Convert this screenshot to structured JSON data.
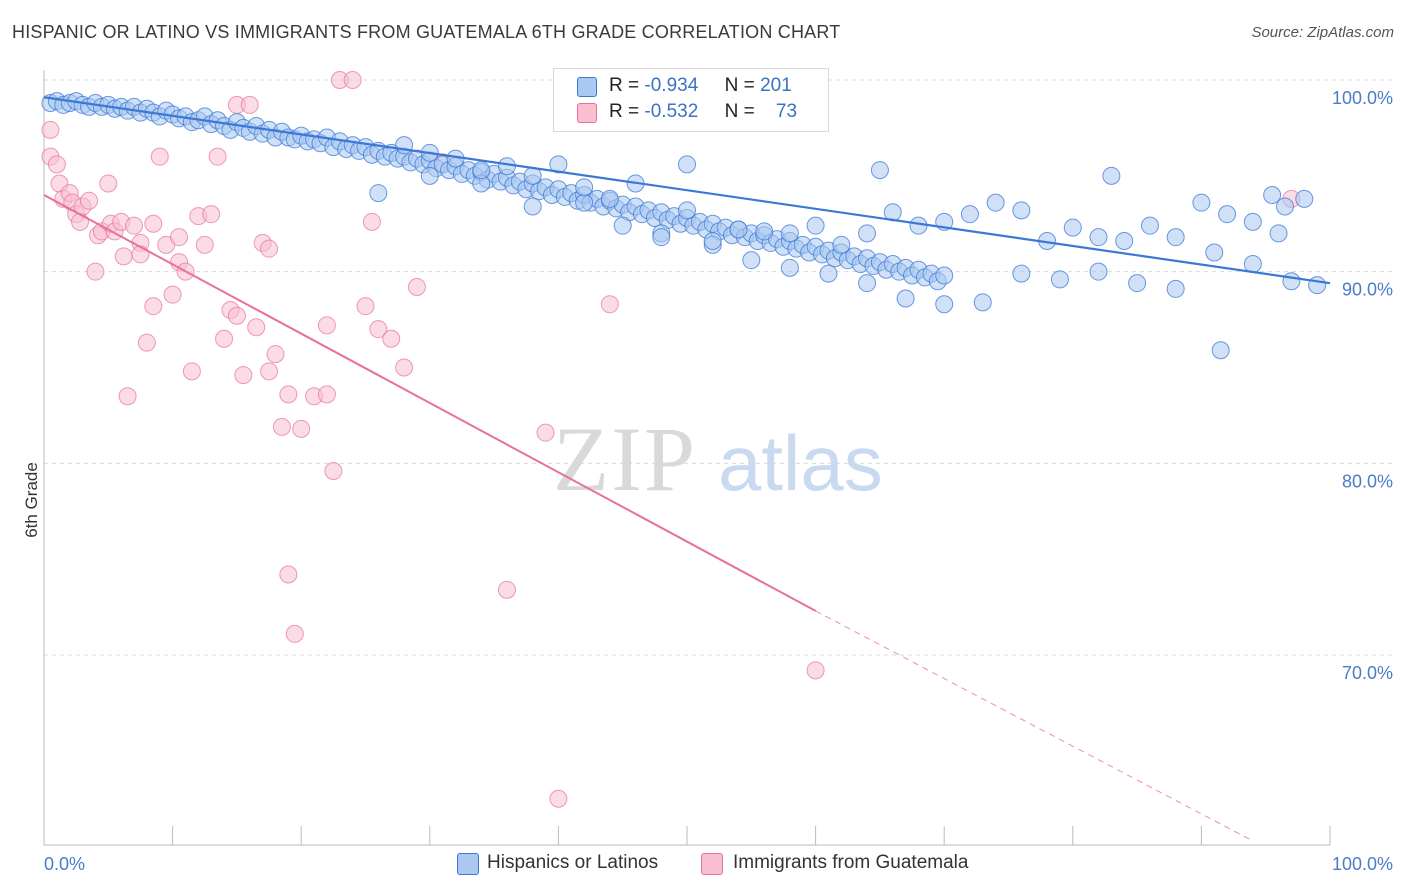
{
  "title": "HISPANIC OR LATINO VS IMMIGRANTS FROM GUATEMALA 6TH GRADE CORRELATION CHART",
  "source": "Source: ZipAtlas.com",
  "watermark": {
    "zip": "ZIP",
    "atlas": "atlas"
  },
  "colors": {
    "blue": "#3b78d6",
    "blue_fill": "#aac8f0",
    "pink": "#e8719a",
    "pink_fill": "#f7bfd0",
    "tick_text": "#4a7cc7"
  },
  "stats": [
    {
      "series": "Hispanics or Latinos",
      "r_label": "R =",
      "r_value": "-0.934",
      "n_label": "N =",
      "n_value": "201"
    },
    {
      "series": "Immigrants from Guatemala",
      "r_label": "R =",
      "r_value": "-0.532",
      "n_label": "N =",
      "n_value": "73"
    }
  ],
  "legend": [
    {
      "label": "Hispanics or Latinos"
    },
    {
      "label": "Immigrants from Guatemala"
    }
  ],
  "chart_data": {
    "type": "scatter",
    "title": "HISPANIC OR LATINO VS IMMIGRANTS FROM GUATEMALA 6TH GRADE CORRELATION CHART",
    "xlabel": "",
    "ylabel": "6th Grade",
    "xlim": [
      0,
      100
    ],
    "ylim": [
      60,
      102
    ],
    "x_tick_labels": [
      "0.0%",
      "100.0%"
    ],
    "y_ticks": [
      100,
      90,
      80,
      70
    ],
    "y_tick_labels": [
      "100.0%",
      "90.0%",
      "80.0%",
      "70.0%"
    ],
    "grid": true,
    "legend_position": "bottom",
    "series": [
      {
        "name": "Hispanics or Latinos",
        "color": "#3b78d6",
        "trend": {
          "x": [
            0,
            100
          ],
          "y": [
            99.1,
            89.4
          ]
        },
        "points": [
          [
            0.5,
            98.8
          ],
          [
            1,
            98.9
          ],
          [
            1.5,
            98.7
          ],
          [
            2,
            98.8
          ],
          [
            2.5,
            98.9
          ],
          [
            3,
            98.7
          ],
          [
            3.5,
            98.6
          ],
          [
            4,
            98.8
          ],
          [
            4.5,
            98.6
          ],
          [
            5,
            98.7
          ],
          [
            5.5,
            98.5
          ],
          [
            6,
            98.6
          ],
          [
            6.5,
            98.4
          ],
          [
            7,
            98.6
          ],
          [
            7.5,
            98.3
          ],
          [
            8,
            98.5
          ],
          [
            8.5,
            98.3
          ],
          [
            9,
            98.1
          ],
          [
            9.5,
            98.4
          ],
          [
            10,
            98.2
          ],
          [
            10.5,
            98.0
          ],
          [
            11,
            98.1
          ],
          [
            11.5,
            97.8
          ],
          [
            12,
            97.9
          ],
          [
            12.5,
            98.1
          ],
          [
            13,
            97.7
          ],
          [
            13.5,
            97.9
          ],
          [
            14,
            97.6
          ],
          [
            14.5,
            97.4
          ],
          [
            15,
            97.8
          ],
          [
            15.5,
            97.5
          ],
          [
            16,
            97.3
          ],
          [
            16.5,
            97.6
          ],
          [
            17,
            97.2
          ],
          [
            17.5,
            97.4
          ],
          [
            18,
            97.0
          ],
          [
            18.5,
            97.3
          ],
          [
            19,
            97.0
          ],
          [
            19.5,
            96.9
          ],
          [
            20,
            97.1
          ],
          [
            20.5,
            96.8
          ],
          [
            21,
            96.9
          ],
          [
            21.5,
            96.7
          ],
          [
            22,
            97.0
          ],
          [
            22.5,
            96.5
          ],
          [
            23,
            96.8
          ],
          [
            23.5,
            96.4
          ],
          [
            24,
            96.6
          ],
          [
            24.5,
            96.3
          ],
          [
            25,
            96.5
          ],
          [
            25.5,
            96.1
          ],
          [
            26,
            96.3
          ],
          [
            26.5,
            96.0
          ],
          [
            27,
            96.2
          ],
          [
            27.5,
            95.9
          ],
          [
            28,
            96.0
          ],
          [
            28.5,
            95.7
          ],
          [
            29,
            95.9
          ],
          [
            29.5,
            95.6
          ],
          [
            30,
            95.8
          ],
          [
            30.5,
            95.4
          ],
          [
            31,
            95.6
          ],
          [
            31.5,
            95.3
          ],
          [
            32,
            95.5
          ],
          [
            32.5,
            95.1
          ],
          [
            33,
            95.3
          ],
          [
            33.5,
            95.0
          ],
          [
            34,
            95.2
          ],
          [
            34.5,
            94.8
          ],
          [
            35,
            95.1
          ],
          [
            35.5,
            94.7
          ],
          [
            36,
            94.9
          ],
          [
            36.5,
            94.5
          ],
          [
            37,
            94.7
          ],
          [
            37.5,
            94.3
          ],
          [
            38,
            94.6
          ],
          [
            38.5,
            94.2
          ],
          [
            39,
            94.4
          ],
          [
            39.5,
            94.0
          ],
          [
            40,
            94.3
          ],
          [
            40.5,
            93.9
          ],
          [
            41,
            94.1
          ],
          [
            41.5,
            93.7
          ],
          [
            42,
            94.0
          ],
          [
            42.5,
            93.6
          ],
          [
            43,
            93.8
          ],
          [
            43.5,
            93.4
          ],
          [
            44,
            93.7
          ],
          [
            44.5,
            93.3
          ],
          [
            45,
            93.5
          ],
          [
            45.5,
            93.1
          ],
          [
            46,
            93.4
          ],
          [
            46.5,
            93.0
          ],
          [
            47,
            93.2
          ],
          [
            47.5,
            92.8
          ],
          [
            48,
            93.1
          ],
          [
            48.5,
            92.7
          ],
          [
            49,
            92.9
          ],
          [
            49.5,
            92.5
          ],
          [
            50,
            92.8
          ],
          [
            50.5,
            92.4
          ],
          [
            51,
            92.6
          ],
          [
            51.5,
            92.2
          ],
          [
            52,
            92.5
          ],
          [
            52.5,
            92.1
          ],
          [
            53,
            92.3
          ],
          [
            53.5,
            91.9
          ],
          [
            54,
            92.2
          ],
          [
            54.5,
            91.8
          ],
          [
            55,
            92.0
          ],
          [
            55.5,
            91.6
          ],
          [
            56,
            91.9
          ],
          [
            56.5,
            91.5
          ],
          [
            57,
            91.7
          ],
          [
            57.5,
            91.3
          ],
          [
            58,
            91.6
          ],
          [
            58.5,
            91.2
          ],
          [
            59,
            91.4
          ],
          [
            59.5,
            91.0
          ],
          [
            60,
            91.3
          ],
          [
            60.5,
            90.9
          ],
          [
            61,
            91.1
          ],
          [
            61.5,
            90.7
          ],
          [
            62,
            91.0
          ],
          [
            62.5,
            90.6
          ],
          [
            63,
            90.8
          ],
          [
            63.5,
            90.4
          ],
          [
            64,
            90.7
          ],
          [
            64.5,
            90.3
          ],
          [
            65,
            90.5
          ],
          [
            65.5,
            90.1
          ],
          [
            66,
            90.4
          ],
          [
            66.5,
            90.0
          ],
          [
            67,
            90.2
          ],
          [
            67.5,
            89.8
          ],
          [
            68,
            90.1
          ],
          [
            68.5,
            89.7
          ],
          [
            69,
            89.9
          ],
          [
            69.5,
            89.5
          ],
          [
            70,
            89.8
          ],
          [
            26,
            94.1
          ],
          [
            30,
            95.0
          ],
          [
            34,
            94.6
          ],
          [
            38,
            93.4
          ],
          [
            42,
            93.6
          ],
          [
            45,
            92.4
          ],
          [
            48,
            92.0
          ],
          [
            52,
            91.4
          ],
          [
            55,
            90.6
          ],
          [
            58,
            90.2
          ],
          [
            61,
            89.9
          ],
          [
            64,
            89.4
          ],
          [
            67,
            88.6
          ],
          [
            70,
            88.3
          ],
          [
            73,
            88.4
          ],
          [
            76,
            89.9
          ],
          [
            79,
            89.6
          ],
          [
            82,
            90.0
          ],
          [
            85,
            89.4
          ],
          [
            88,
            89.1
          ],
          [
            91,
            91.0
          ],
          [
            94,
            90.4
          ],
          [
            97,
            89.5
          ],
          [
            99,
            89.3
          ],
          [
            96,
            92.0
          ],
          [
            94,
            92.6
          ],
          [
            92,
            93.0
          ],
          [
            90,
            93.6
          ],
          [
            98,
            93.8
          ],
          [
            88,
            91.8
          ],
          [
            86,
            92.4
          ],
          [
            84,
            91.6
          ],
          [
            82,
            91.8
          ],
          [
            80,
            92.3
          ],
          [
            78,
            91.6
          ],
          [
            76,
            93.2
          ],
          [
            74,
            93.6
          ],
          [
            72,
            93.0
          ],
          [
            70,
            92.6
          ],
          [
            68,
            92.4
          ],
          [
            66,
            93.1
          ],
          [
            64,
            92.0
          ],
          [
            62,
            91.4
          ],
          [
            60,
            92.4
          ],
          [
            58,
            92.0
          ],
          [
            56,
            92.1
          ],
          [
            54,
            92.2
          ],
          [
            52,
            91.6
          ],
          [
            50,
            93.2
          ],
          [
            48,
            91.8
          ],
          [
            46,
            94.6
          ],
          [
            44,
            93.8
          ],
          [
            42,
            94.4
          ],
          [
            40,
            95.6
          ],
          [
            38,
            95.0
          ],
          [
            36,
            95.5
          ],
          [
            34,
            95.3
          ],
          [
            32,
            95.9
          ],
          [
            30,
            96.2
          ],
          [
            28,
            96.6
          ],
          [
            91.5,
            85.9
          ],
          [
            83,
            95.0
          ],
          [
            65,
            95.3
          ],
          [
            50,
            95.6
          ],
          [
            95.5,
            94.0
          ],
          [
            96.5,
            93.4
          ]
        ]
      },
      {
        "name": "Immigrants from Guatemala",
        "color": "#e8719a",
        "trend": {
          "x": [
            0,
            60
          ],
          "y": [
            94.0,
            72.3
          ],
          "dashed_to": {
            "x": 94,
            "y": 60.3
          }
        },
        "points": [
          [
            0.5,
            97.4
          ],
          [
            0.5,
            96.0
          ],
          [
            1,
            95.6
          ],
          [
            1.2,
            94.6
          ],
          [
            1.5,
            93.8
          ],
          [
            2,
            94.1
          ],
          [
            2.2,
            93.6
          ],
          [
            2.5,
            93.0
          ],
          [
            2.8,
            92.6
          ],
          [
            3,
            93.4
          ],
          [
            3.5,
            93.7
          ],
          [
            4,
            90.0
          ],
          [
            4.2,
            91.9
          ],
          [
            4.5,
            92.1
          ],
          [
            5,
            94.6
          ],
          [
            5.2,
            92.5
          ],
          [
            5.5,
            92.1
          ],
          [
            6,
            92.6
          ],
          [
            6.2,
            90.8
          ],
          [
            6.5,
            83.5
          ],
          [
            7,
            92.4
          ],
          [
            7.5,
            91.5
          ],
          [
            7.5,
            90.9
          ],
          [
            8,
            86.3
          ],
          [
            8.5,
            92.5
          ],
          [
            8.5,
            88.2
          ],
          [
            9,
            96.0
          ],
          [
            9.5,
            91.4
          ],
          [
            10,
            88.8
          ],
          [
            10.5,
            91.8
          ],
          [
            10.5,
            90.5
          ],
          [
            11,
            90.0
          ],
          [
            11.5,
            84.8
          ],
          [
            12,
            92.9
          ],
          [
            12.5,
            91.4
          ],
          [
            13,
            93.0
          ],
          [
            13.5,
            96.0
          ],
          [
            14,
            86.5
          ],
          [
            14.5,
            88.0
          ],
          [
            15,
            98.7
          ],
          [
            15,
            87.7
          ],
          [
            15.5,
            84.6
          ],
          [
            16,
            98.7
          ],
          [
            16.5,
            87.1
          ],
          [
            17,
            91.5
          ],
          [
            17.5,
            84.8
          ],
          [
            17.5,
            91.2
          ],
          [
            18,
            85.7
          ],
          [
            18.5,
            81.9
          ],
          [
            19,
            74.2
          ],
          [
            19.5,
            71.1
          ],
          [
            19,
            83.6
          ],
          [
            20,
            81.8
          ],
          [
            21,
            83.5
          ],
          [
            22,
            87.2
          ],
          [
            22,
            83.6
          ],
          [
            22.5,
            79.6
          ],
          [
            23,
            100.0
          ],
          [
            24,
            100.0
          ],
          [
            25,
            88.2
          ],
          [
            25.5,
            92.6
          ],
          [
            26,
            87.0
          ],
          [
            27,
            86.5
          ],
          [
            28,
            85.0
          ],
          [
            29,
            89.2
          ],
          [
            31,
            95.7
          ],
          [
            36,
            73.4
          ],
          [
            39,
            81.6
          ],
          [
            40,
            62.5
          ],
          [
            44,
            88.3
          ],
          [
            56.5,
            100.0
          ],
          [
            60,
            69.2
          ],
          [
            97,
            93.8
          ]
        ]
      }
    ]
  }
}
